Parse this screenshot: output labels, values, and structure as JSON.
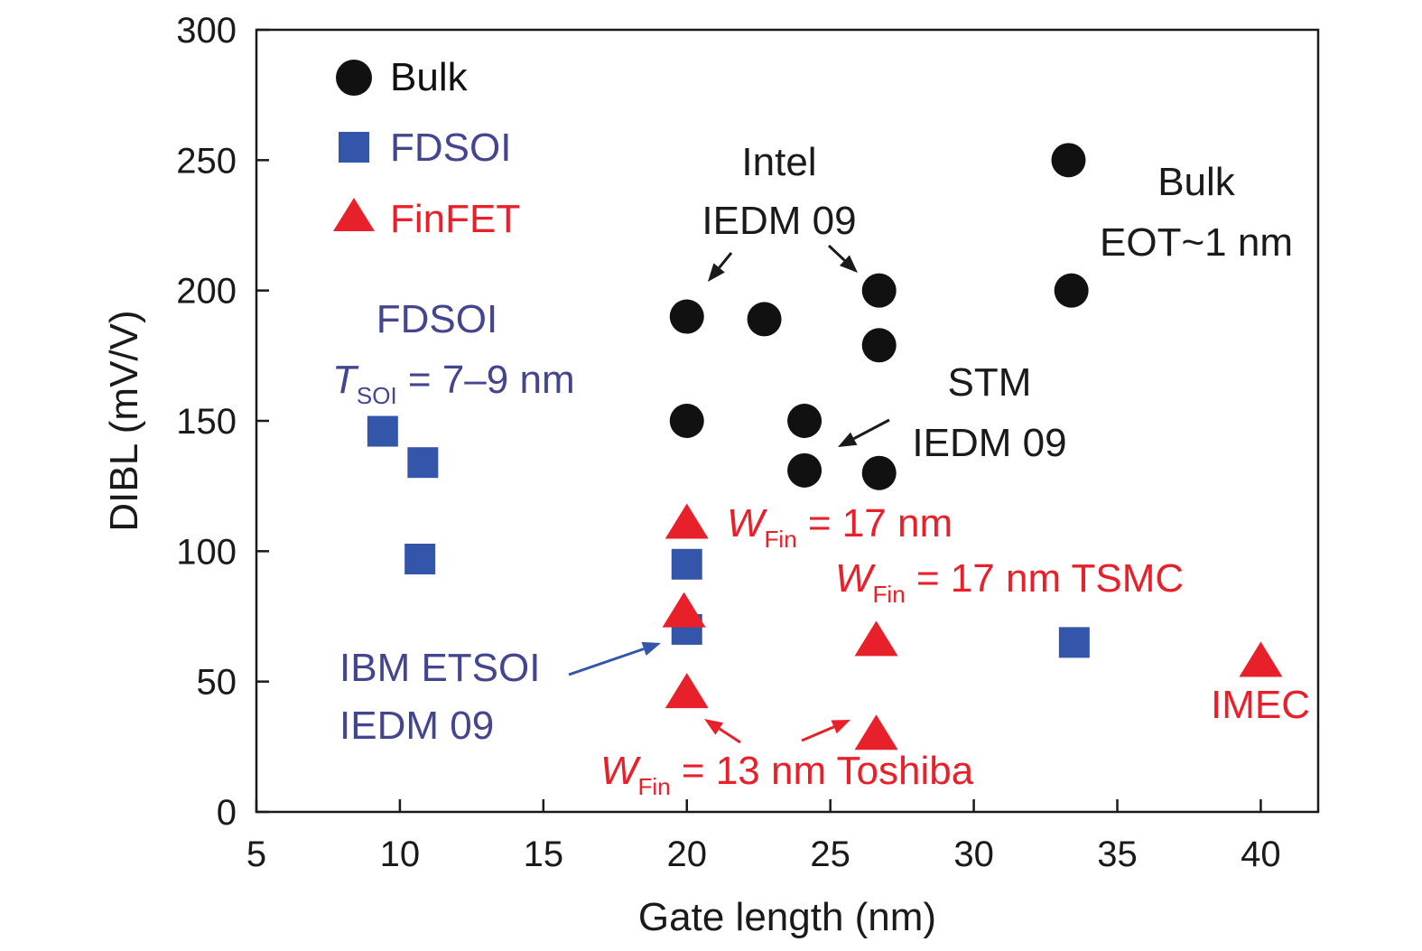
{
  "chart_data": {
    "type": "scatter",
    "xlabel": "Gate length (nm)",
    "ylabel": "DIBL (mV/V)",
    "xlim": [
      5,
      42
    ],
    "ylim": [
      0,
      300
    ],
    "xticks": [
      5,
      10,
      15,
      20,
      25,
      30,
      35,
      40
    ],
    "yticks": [
      0,
      50,
      100,
      150,
      200,
      250,
      300
    ],
    "grid": false,
    "legend_placement": "top-left",
    "series": [
      {
        "name": "Bulk",
        "marker": "circle",
        "color": "#111111",
        "points": [
          {
            "x": 20.0,
            "y": 190
          },
          {
            "x": 22.7,
            "y": 189
          },
          {
            "x": 26.7,
            "y": 200
          },
          {
            "x": 26.7,
            "y": 179
          },
          {
            "x": 20.0,
            "y": 150
          },
          {
            "x": 24.1,
            "y": 150
          },
          {
            "x": 24.1,
            "y": 131
          },
          {
            "x": 26.7,
            "y": 130
          },
          {
            "x": 33.3,
            "y": 250
          },
          {
            "x": 33.4,
            "y": 200
          }
        ]
      },
      {
        "name": "FDSOI",
        "marker": "square",
        "color": "#3355aa",
        "points": [
          {
            "x": 9.4,
            "y": 146
          },
          {
            "x": 10.8,
            "y": 134
          },
          {
            "x": 10.7,
            "y": 97
          },
          {
            "x": 20.0,
            "y": 95
          },
          {
            "x": 20.0,
            "y": 70
          },
          {
            "x": 33.5,
            "y": 65
          }
        ]
      },
      {
        "name": "FinFET",
        "marker": "triangle",
        "color": "#e8202a",
        "points": [
          {
            "x": 20.0,
            "y": 110
          },
          {
            "x": 19.9,
            "y": 76
          },
          {
            "x": 20.0,
            "y": 45
          },
          {
            "x": 26.6,
            "y": 65
          },
          {
            "x": 26.6,
            "y": 29
          },
          {
            "x": 40.0,
            "y": 57
          }
        ]
      }
    ],
    "annotations": {
      "intel": [
        "Intel",
        "IEDM 09"
      ],
      "bulk_eot": [
        "Bulk",
        "EOT~1 nm"
      ],
      "fdsoi": [
        "FDSOI"
      ],
      "tsoi": {
        "main": "T",
        "sub": "SOI",
        "rest": " = 7–9 nm"
      },
      "stm": [
        "STM",
        "IEDM 09"
      ],
      "wfin17": {
        "main": "W",
        "sub": "Fin",
        "rest": " = 17 nm"
      },
      "wfin17_tsmc": {
        "main": "W",
        "sub": "Fin",
        "rest": " = 17 nm TSMC"
      },
      "ibm": [
        "IBM ETSOI",
        "IEDM 09"
      ],
      "imec": "IMEC",
      "wfin13": {
        "main": "W",
        "sub": "Fin",
        "rest": " = 13 nm Toshiba"
      }
    },
    "colors": {
      "bulk": "#111111",
      "fdsoi": "#3355aa",
      "fdsoi_text": "#43468f",
      "finfet": "#e8202a"
    }
  }
}
